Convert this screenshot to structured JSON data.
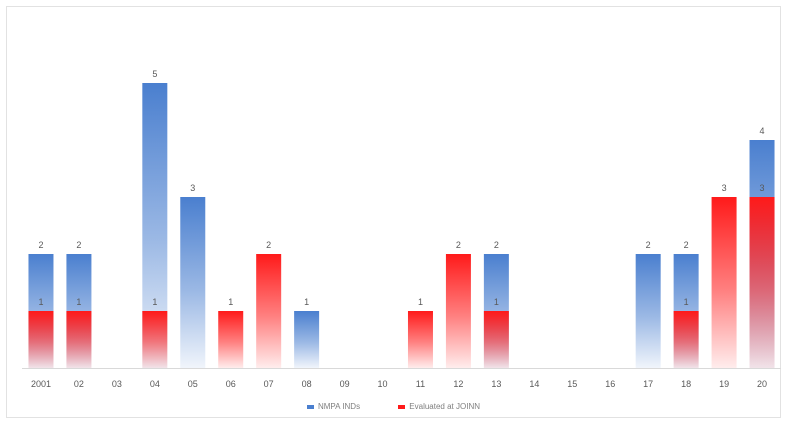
{
  "chart_data": {
    "type": "bar",
    "categories": [
      "2001",
      "02",
      "03",
      "04",
      "05",
      "06",
      "07",
      "08",
      "09",
      "10",
      "11",
      "12",
      "13",
      "14",
      "15",
      "16",
      "17",
      "18",
      "19",
      "20"
    ],
    "series": [
      {
        "name": "NMPA INDs",
        "values": [
          2,
          2,
          0,
          5,
          3,
          0,
          0,
          1,
          0,
          0,
          0,
          0,
          2,
          0,
          0,
          0,
          2,
          2,
          0,
          4
        ],
        "color": "#4a7fcf"
      },
      {
        "name": "Evaluated at JOINN",
        "values": [
          1,
          1,
          0,
          1,
          0,
          1,
          2,
          0,
          0,
          0,
          1,
          2,
          1,
          0,
          0,
          0,
          0,
          1,
          3,
          3
        ],
        "color": "#ff1a1a"
      }
    ],
    "data_labels": {
      "NMPA INDs": [
        "2",
        "2",
        "",
        "5",
        "3",
        "",
        "",
        "1",
        "",
        "",
        "",
        "",
        "2",
        "",
        "",
        "",
        "2",
        "2",
        "",
        "4"
      ],
      "Evaluated at JOINN": [
        "1",
        "1",
        "",
        "1",
        "",
        "1",
        "2",
        "",
        "",
        "",
        "1",
        "2",
        "1",
        "",
        "",
        "",
        "",
        "1",
        "3",
        "3"
      ]
    },
    "ylim": [
      0,
      5.5
    ],
    "overlap": true,
    "grid": false,
    "legend_position": "bottom",
    "title": "",
    "xlabel": "",
    "ylabel": ""
  }
}
